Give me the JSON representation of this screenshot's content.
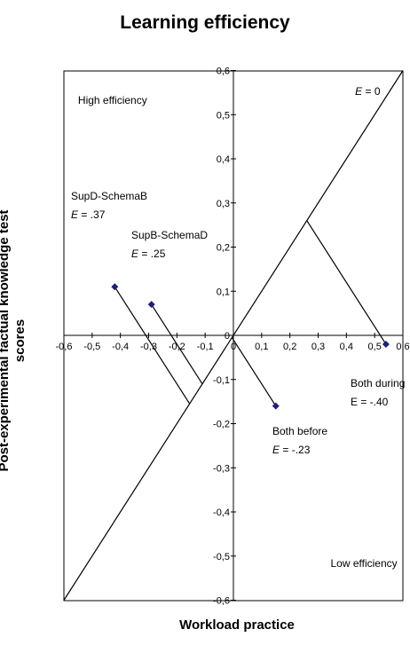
{
  "chart_data": {
    "type": "scatter",
    "title": "Learning efficiency",
    "xlabel": "Workload practice",
    "ylabel_line1": "Post-experimental factual knowledge test",
    "ylabel_line2": "scores",
    "xlim": [
      -0.6,
      0.6
    ],
    "ylim": [
      -0.6,
      0.6
    ],
    "x_ticks": [
      "-0,6",
      "-0,5",
      "-0,4",
      "-0,3",
      "-0,2",
      "-0,1",
      "0",
      "0,1",
      "0,2",
      "0,3",
      "0,4",
      "0,5",
      "0,6"
    ],
    "y_ticks": [
      "-0,6",
      "-0,5",
      "-0,4",
      "-0,3",
      "-0,2",
      "-0,1",
      "0",
      "0,1",
      "0,2",
      "0,3",
      "0,4",
      "0,5",
      "0,6"
    ],
    "grid": false,
    "reference_line": {
      "label_var": "E",
      "label_rest": " = 0"
    },
    "corner_labels": {
      "top_left": "High efficiency",
      "bottom_right": "Low efficiency"
    },
    "points": [
      {
        "name": "SupD-SchemaB",
        "e_var": "E",
        "e_rest": " = .37",
        "x": -0.42,
        "y": 0.11
      },
      {
        "name": "SupB-SchemaD",
        "e_var": "E",
        "e_rest": " = .25",
        "x": -0.29,
        "y": 0.07
      },
      {
        "name": "Both before",
        "e_var": "E",
        "e_rest": " = -.23",
        "x": 0.15,
        "y": -0.16
      },
      {
        "name": "Both during",
        "e_var": "",
        "e_rest": "E = -.40",
        "x": 0.54,
        "y": -0.02
      }
    ],
    "marker_color": "#1f1f7a",
    "line_color": "#000000"
  }
}
